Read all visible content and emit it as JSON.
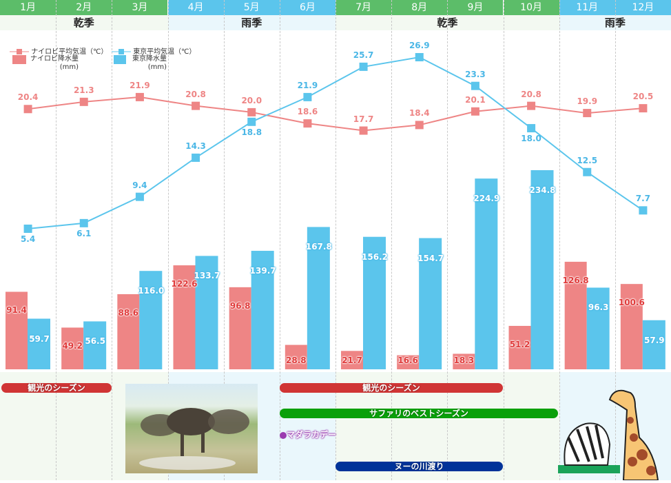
{
  "colors": {
    "green": "#5cbd69",
    "blue": "#5bc5ec",
    "nairobi": "#ee8585",
    "tokyo": "#5bc5ec",
    "nairobi_label": "#e03a3a",
    "tokyo_label": "#4bb7e6"
  },
  "header": {
    "months": [
      "1月",
      "2月",
      "3月",
      "4月",
      "5月",
      "6月",
      "7月",
      "8月",
      "9月",
      "10月",
      "11月",
      "12月"
    ],
    "seasons": [
      {
        "label": "乾季",
        "start": 0,
        "end": 3,
        "type": "dry"
      },
      {
        "label": "雨季",
        "start": 3,
        "end": 6,
        "type": "wet"
      },
      {
        "label": "乾季",
        "start": 6,
        "end": 10,
        "type": "dry"
      },
      {
        "label": "雨季",
        "start": 10,
        "end": 12,
        "type": "wet"
      }
    ]
  },
  "legend": {
    "nairobi_temp": "ナイロビ平均気温（℃）",
    "nairobi_rain": "ナイロビ降水量",
    "nairobi_rain_unit": "(mm)",
    "tokyo_temp": "東京平均気温（℃）",
    "tokyo_rain": "東京降水量",
    "tokyo_rain_unit": "(mm)"
  },
  "chart_data": {
    "type": "bar+line",
    "categories": [
      "1月",
      "2月",
      "3月",
      "4月",
      "5月",
      "6月",
      "7月",
      "8月",
      "9月",
      "10月",
      "11月",
      "12月"
    ],
    "series": [
      {
        "name": "ナイロビ平均気温（℃）",
        "kind": "line",
        "values": [
          20.4,
          21.3,
          21.9,
          20.8,
          20.0,
          18.6,
          17.7,
          18.4,
          20.1,
          20.8,
          19.9,
          20.5
        ]
      },
      {
        "name": "東京平均気温（℃）",
        "kind": "line",
        "values": [
          5.4,
          6.1,
          9.4,
          14.3,
          18.8,
          21.9,
          25.7,
          26.9,
          23.3,
          18.0,
          12.5,
          7.7
        ]
      },
      {
        "name": "ナイロビ降水量(mm)",
        "kind": "bar",
        "values": [
          91.4,
          49.2,
          88.6,
          122.6,
          96.8,
          28.8,
          21.7,
          16.6,
          18.3,
          51.2,
          126.8,
          100.6
        ]
      },
      {
        "name": "東京降水量(mm)",
        "kind": "bar",
        "values": [
          59.7,
          56.5,
          116.0,
          133.7,
          139.7,
          167.8,
          156.2,
          154.7,
          224.9,
          234.8,
          96.3,
          57.9
        ]
      }
    ]
  },
  "events": [
    {
      "label": "観光のシーズン",
      "color": "#d03535"
    },
    {
      "label": "観光のシーズン",
      "color": "#d03535"
    },
    {
      "label": "サファリのベストシーズン",
      "color": "#0aa00a"
    },
    {
      "label": "マダラカデー",
      "color": "#9b3bb0"
    },
    {
      "label": "ヌーの川渡り",
      "color": "#003399"
    }
  ]
}
